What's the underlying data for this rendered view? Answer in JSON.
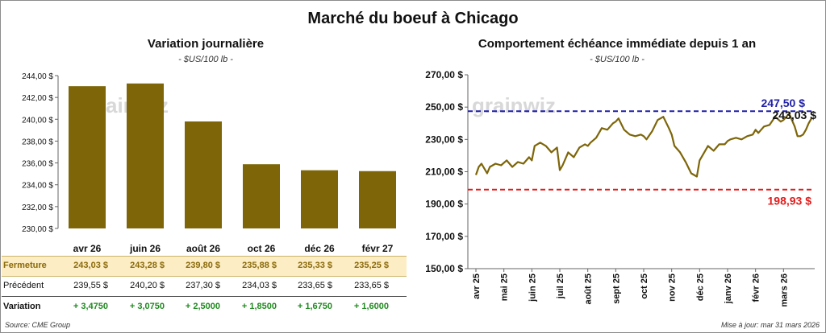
{
  "title": "Marché du boeuf à Chicago",
  "watermark": "grainwiz",
  "left_panel": {
    "title": "Variation journalière",
    "units": "- $US/100 lb -"
  },
  "right_panel": {
    "title": "Comportement échéance immédiate depuis 1 an",
    "units": "- $US/100 lb -"
  },
  "table": {
    "close_label": "Fermeture",
    "prev_label": "Précédent",
    "var_label": "Variation",
    "close": [
      "243,03  $",
      "243,28  $",
      "239,80  $",
      "235,88  $",
      "235,33  $",
      "235,25  $"
    ],
    "prev": [
      "239,55  $",
      "240,20  $",
      "237,30  $",
      "234,03  $",
      "233,65  $",
      "233,65  $"
    ],
    "var": [
      "+ 3,4750",
      "+ 3,0750",
      "+ 2,5000",
      "+ 1,8500",
      "+ 1,6750",
      "+ 1,6000"
    ]
  },
  "footer": {
    "source": "Source: CME Group",
    "updated": "Mise à jour: mar 31 mars 2026"
  },
  "chart_data": [
    {
      "type": "bar",
      "title": "Variation journalière",
      "categories": [
        "avr 26",
        "juin 26",
        "août 26",
        "oct 26",
        "déc 26",
        "févr 27"
      ],
      "values": [
        243.03,
        243.28,
        239.8,
        235.88,
        235.33,
        235.25
      ],
      "ylim": [
        230,
        244
      ],
      "yticks": [
        "230,00 $",
        "232,00 $",
        "234,00 $",
        "236,00 $",
        "238,00 $",
        "240,00 $",
        "242,00 $",
        "244,00 $"
      ],
      "bar_color": "#7d6508",
      "grid": false
    },
    {
      "type": "line",
      "title": "Comportement échéance immédiate depuis 1 an",
      "ylim": [
        150,
        270
      ],
      "yticks": [
        "150,00 $",
        "170,00 $",
        "190,00 $",
        "210,00 $",
        "230,00 $",
        "250,00 $",
        "270,00 $"
      ],
      "xticks": [
        "avr 25",
        "mai 25",
        "juin 25",
        "juil 25",
        "août 25",
        "sept 25",
        "oct 25",
        "nov 25",
        "déc 25",
        "janv 26",
        "févr 26",
        "mars 26"
      ],
      "line_color": "#7d6508",
      "x": [
        0,
        0.1,
        0.2,
        0.4,
        0.5,
        0.7,
        0.9,
        1.1,
        1.3,
        1.5,
        1.7,
        1.9,
        2.0,
        2.1,
        2.3,
        2.5,
        2.7,
        2.9,
        3.0,
        3.1,
        3.3,
        3.5,
        3.7,
        3.9,
        4.0,
        4.1,
        4.3,
        4.5,
        4.7,
        4.9,
        5.0,
        5.1,
        5.3,
        5.5,
        5.7,
        5.9,
        6.0,
        6.1,
        6.3,
        6.5,
        6.7,
        6.9,
        7.0,
        7.1,
        7.3,
        7.5,
        7.7,
        7.9,
        8.0,
        8.1,
        8.3,
        8.5,
        8.7,
        8.9,
        9.0,
        9.1,
        9.3,
        9.5,
        9.7,
        9.9,
        10.0,
        10.1,
        10.3,
        10.5,
        10.7,
        10.9,
        11.0,
        11.2,
        11.4,
        11.5
      ],
      "y": [
        208,
        213,
        215,
        209,
        213,
        215,
        214,
        217,
        213,
        216,
        215,
        219,
        217,
        226,
        228,
        226,
        222,
        225,
        211,
        214,
        222,
        219,
        225,
        227,
        226,
        228,
        231,
        237,
        236,
        240,
        241,
        243,
        236,
        233,
        232,
        233,
        232,
        230,
        235,
        242,
        244,
        237,
        233,
        226,
        222,
        216,
        209,
        207,
        217,
        220,
        226,
        223,
        227,
        227,
        229,
        230,
        231,
        230,
        232,
        233,
        236,
        234,
        238,
        239,
        244,
        241,
        242,
        246,
        238,
        232
      ],
      "series_tail": [
        232,
        233,
        236,
        240,
        243
      ],
      "ref_lines": [
        {
          "value": 247.5,
          "label": "247,50 $",
          "color": "#1f1fa8"
        },
        {
          "value": 243.03,
          "label": "243,03 $",
          "color": "#111111"
        },
        {
          "value": 198.93,
          "label": "198,93 $",
          "color": "#e31b1b"
        }
      ],
      "grid": false
    }
  ]
}
